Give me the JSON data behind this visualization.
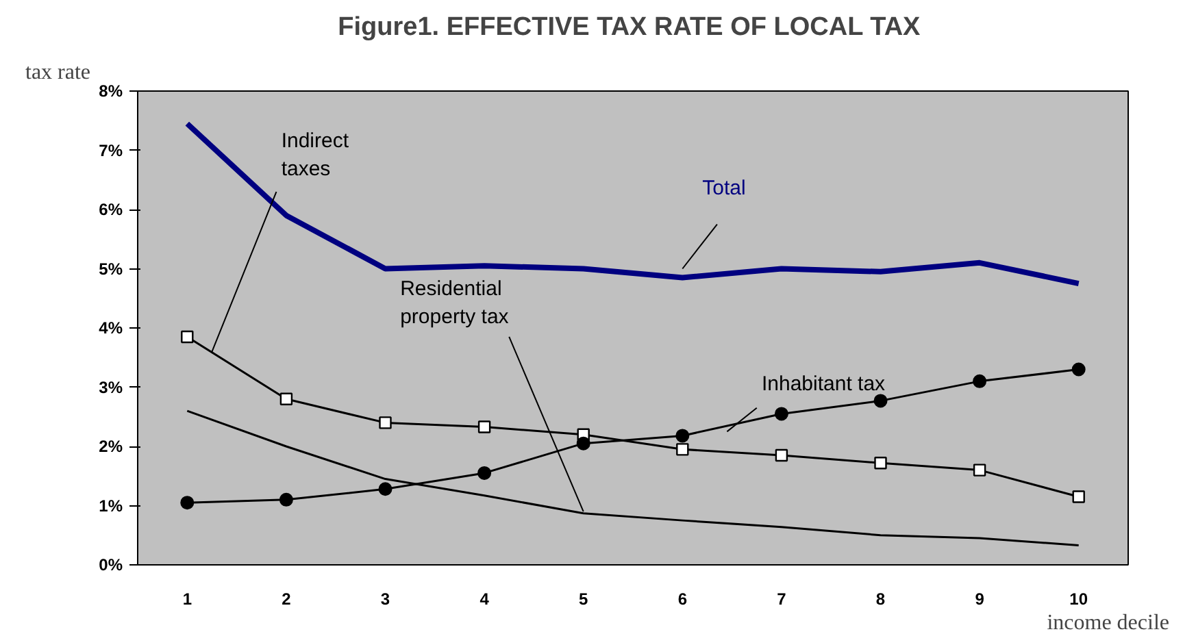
{
  "chart_data": {
    "type": "line",
    "title": "Figure1.  EFFECTIVE TAX RATE OF LOCAL TAX",
    "ylabel": "tax rate",
    "xlabel": "income decile",
    "categories": [
      "1",
      "2",
      "3",
      "4",
      "5",
      "6",
      "7",
      "8",
      "9",
      "10"
    ],
    "ylim": [
      0,
      8
    ],
    "yticks": [
      {
        "value": 0,
        "label": "0%"
      },
      {
        "value": 1,
        "label": "1%"
      },
      {
        "value": 2,
        "label": "2%"
      },
      {
        "value": 3,
        "label": "3%"
      },
      {
        "value": 4,
        "label": "4%"
      },
      {
        "value": 5,
        "label": "5%"
      },
      {
        "value": 6,
        "label": "6%"
      },
      {
        "value": 7,
        "label": "7%"
      },
      {
        "value": 8,
        "label": "8%"
      }
    ],
    "grid": false,
    "series": [
      {
        "name": "Total",
        "color": "#000080",
        "marker": "none",
        "values": [
          7.45,
          5.9,
          5.0,
          5.05,
          5.0,
          4.85,
          5.0,
          4.95,
          5.1,
          4.75
        ]
      },
      {
        "name": "Indirect\ntaxes",
        "color": "#000000",
        "marker": "square",
        "values": [
          3.85,
          2.8,
          2.4,
          2.33,
          2.2,
          1.95,
          1.85,
          1.72,
          1.6,
          1.15
        ]
      },
      {
        "name": "Inhabitant tax",
        "color": "#000000",
        "marker": "circle",
        "values": [
          1.05,
          1.1,
          1.28,
          1.55,
          2.05,
          2.18,
          2.55,
          2.77,
          3.1,
          3.3
        ]
      },
      {
        "name": "Residential\nproperty tax",
        "color": "#000000",
        "marker": "none",
        "values": [
          2.6,
          2.0,
          1.45,
          1.17,
          0.87,
          0.75,
          0.64,
          0.5,
          0.45,
          0.33
        ]
      }
    ]
  }
}
